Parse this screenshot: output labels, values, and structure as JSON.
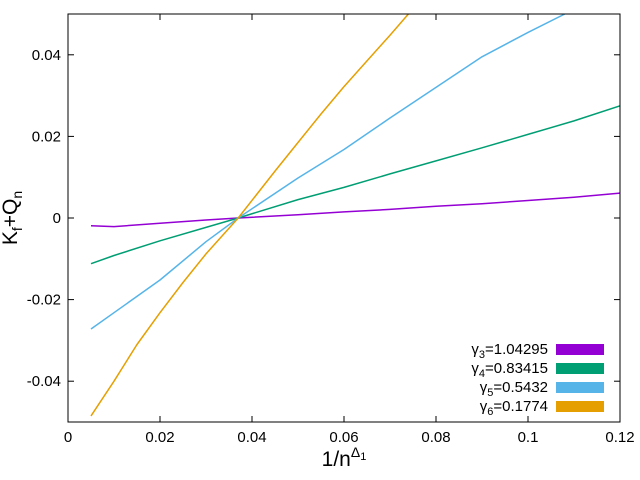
{
  "chart_data": {
    "type": "line",
    "title": "",
    "xlabel": {
      "main": "1/n",
      "sup": "Δ",
      "supsub": "1"
    },
    "ylabel": {
      "main1": "K",
      "sub1": "f",
      "mid": "+Q",
      "sub2": "n"
    },
    "xlim": [
      0,
      0.12
    ],
    "ylim": [
      -0.05,
      0.05
    ],
    "x_ticks": [
      0,
      0.02,
      0.04,
      0.06,
      0.08,
      0.1,
      0.12
    ],
    "x_tick_labels": [
      "0",
      "0.02",
      "0.04",
      "0.06",
      "0.08",
      "0.1",
      "0.12"
    ],
    "y_ticks": [
      -0.04,
      -0.02,
      0,
      0.02,
      0.04
    ],
    "y_tick_labels": [
      "-0.04",
      "-0.02",
      "0",
      "0.02",
      "0.04"
    ],
    "grid": false,
    "legend_position": "bottom-right",
    "series": [
      {
        "name": "γ3=1.04295",
        "label_parts": {
          "greek": "γ",
          "sub": "3",
          "value": "=1.04295"
        },
        "color": "#9400d3",
        "x": [
          0.005,
          0.01,
          0.02,
          0.03,
          0.037,
          0.05,
          0.06,
          0.07,
          0.08,
          0.09,
          0.1,
          0.11,
          0.12
        ],
        "y": [
          -0.0019,
          -0.0021,
          -0.0013,
          -0.0005,
          0.0,
          0.0008,
          0.0015,
          0.0021,
          0.0029,
          0.0035,
          0.0043,
          0.0051,
          0.0061
        ]
      },
      {
        "name": "γ4=0.83415",
        "label_parts": {
          "greek": "γ",
          "sub": "4",
          "value": "=0.83415"
        },
        "color": "#009e73",
        "x": [
          0.005,
          0.01,
          0.02,
          0.03,
          0.037,
          0.05,
          0.06,
          0.07,
          0.08,
          0.09,
          0.1,
          0.11,
          0.12
        ],
        "y": [
          -0.0112,
          -0.0092,
          -0.0056,
          -0.0023,
          0.0,
          0.0045,
          0.0075,
          0.0108,
          0.014,
          0.0172,
          0.0205,
          0.0238,
          0.0275
        ]
      },
      {
        "name": "γ5=0.5432",
        "label_parts": {
          "greek": "γ",
          "sub": "5",
          "value": "=0.5432"
        },
        "color": "#56b4e9",
        "x": [
          0.005,
          0.01,
          0.02,
          0.03,
          0.037,
          0.05,
          0.06,
          0.07,
          0.08,
          0.09,
          0.1,
          0.108
        ],
        "y": [
          -0.0272,
          -0.0232,
          -0.0152,
          -0.0058,
          0.0,
          0.0098,
          0.0168,
          0.0245,
          0.032,
          0.0395,
          0.0455,
          0.05
        ]
      },
      {
        "name": "γ6=0.1774",
        "label_parts": {
          "greek": "γ",
          "sub": "6",
          "value": "=0.1774"
        },
        "color": "#e69f00",
        "x": [
          0.005,
          0.01,
          0.015,
          0.02,
          0.025,
          0.03,
          0.037,
          0.045,
          0.05,
          0.055,
          0.06,
          0.065,
          0.07,
          0.074
        ],
        "y": [
          -0.0485,
          -0.04,
          -0.031,
          -0.0232,
          -0.0158,
          -0.0088,
          0.0,
          0.0115,
          0.0185,
          0.0255,
          0.0322,
          0.0385,
          0.0448,
          0.05
        ]
      }
    ]
  }
}
